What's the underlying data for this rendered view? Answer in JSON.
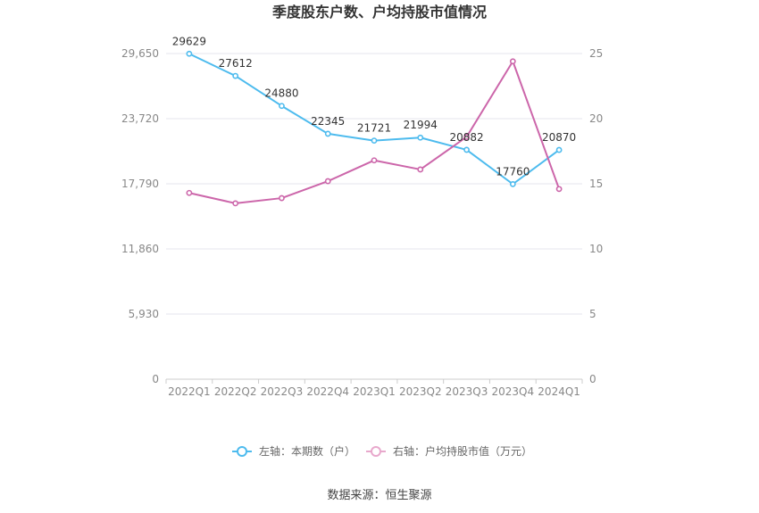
{
  "chart_data": {
    "type": "line",
    "title": "季度股东户数、户均持股市值情况",
    "categories": [
      "2022Q1",
      "2022Q2",
      "2022Q3",
      "2022Q4",
      "2023Q1",
      "2023Q2",
      "2023Q3",
      "2023Q4",
      "2024Q1"
    ],
    "series": [
      {
        "name": "左轴：本期数（户）",
        "axis": "left",
        "color": "#4dbbee",
        "values": [
          29629,
          27612,
          24880,
          22345,
          21721,
          21994,
          20882,
          17760,
          20870
        ],
        "labels": [
          "29629",
          "27612",
          "24880",
          "22345",
          "21721",
          "21994",
          "20882",
          "17760",
          "20870"
        ]
      },
      {
        "name": "右轴：户均持股市值（万元）",
        "axis": "right",
        "color": "#cc66aa",
        "values": [
          14.3,
          13.5,
          13.9,
          15.2,
          16.8,
          16.1,
          18.6,
          24.4,
          14.6
        ]
      }
    ],
    "left_axis": {
      "min": 0,
      "max": 29650,
      "ticks": [
        0,
        5930,
        11860,
        17790,
        23720,
        29650
      ],
      "tick_labels": [
        "0",
        "5,930",
        "11,860",
        "17,790",
        "23,720",
        "29,650"
      ]
    },
    "right_axis": {
      "min": 0,
      "max": 25,
      "ticks": [
        0,
        5,
        10,
        15,
        20,
        25
      ],
      "tick_labels": [
        "0",
        "5",
        "10",
        "15",
        "20",
        "25"
      ]
    },
    "grid": true,
    "legend_position": "bottom-center"
  },
  "source_text": "数据来源：恒生聚源"
}
